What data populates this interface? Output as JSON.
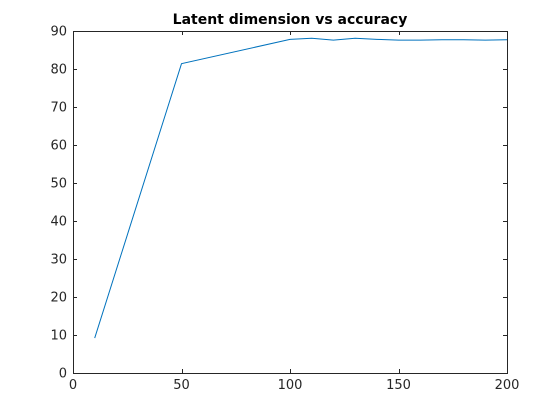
{
  "chart_data": {
    "type": "line",
    "title": "Latent dimension vs accuracy",
    "xlabel": "",
    "ylabel": "",
    "xlim": [
      0,
      200
    ],
    "ylim": [
      0,
      90
    ],
    "xticks": [
      0,
      50,
      100,
      150,
      200
    ],
    "yticks": [
      0,
      10,
      20,
      30,
      40,
      50,
      60,
      70,
      80,
      90
    ],
    "grid": false,
    "series": [
      {
        "color": "#0072bd",
        "x": [
          10,
          50,
          100,
          110,
          120,
          130,
          140,
          150,
          160,
          170,
          180,
          190,
          200
        ],
        "y": [
          9.2,
          81.4,
          87.8,
          88.1,
          87.6,
          88.1,
          87.8,
          87.6,
          87.6,
          87.7,
          87.7,
          87.6,
          87.7
        ]
      }
    ]
  }
}
